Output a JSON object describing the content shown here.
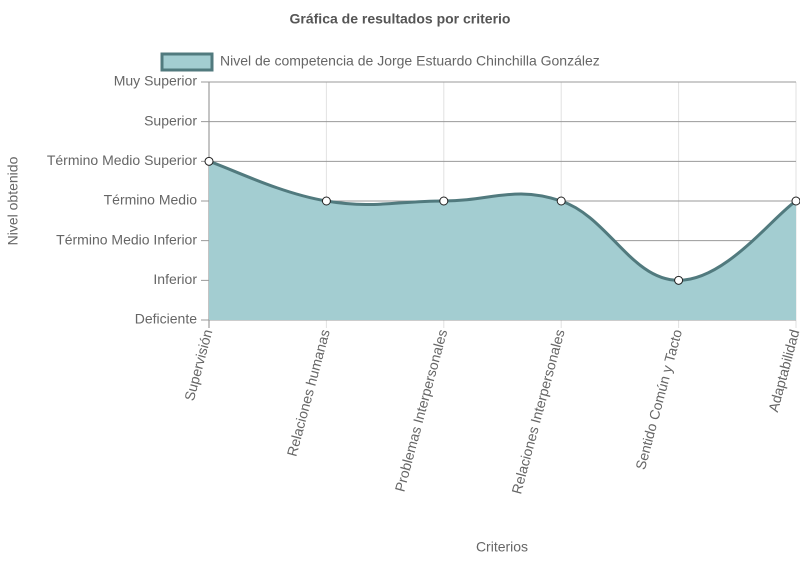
{
  "chart_data": {
    "type": "line",
    "title": "Gráfica de resultados por criterio",
    "x_label": "Criterios",
    "y_label": "Nivel obtenido",
    "categories": [
      "Supervisión",
      "Relaciones humanas",
      "Problemas Interpersonales",
      "Relaciones Interpersonales",
      "Sentido Común y Tacto",
      "Adaptabilidad"
    ],
    "series": [
      {
        "name": "Nivel de competencia de Jorge Estuardo Chinchilla González",
        "color": "#517a7e",
        "fill": "#a3cdd1",
        "values": [
          5,
          4,
          4,
          4,
          2,
          4
        ]
      }
    ],
    "ylim": [
      1,
      7
    ],
    "yticks": [
      {
        "value": 1,
        "label": "Deficiente"
      },
      {
        "value": 2,
        "label": "Inferior"
      },
      {
        "value": 3,
        "label": "Término Medio Inferior"
      },
      {
        "value": 4,
        "label": "Término Medio"
      },
      {
        "value": 5,
        "label": "Término Medio Superior"
      },
      {
        "value": 6,
        "label": "Superior"
      },
      {
        "value": 7,
        "label": "Muy Superior"
      }
    ],
    "grid": true,
    "legend": "top"
  }
}
